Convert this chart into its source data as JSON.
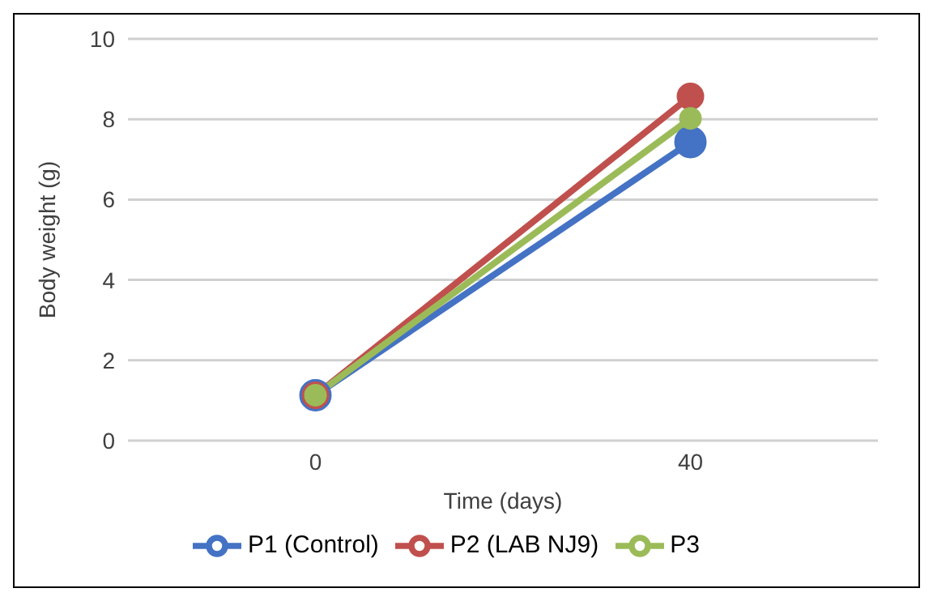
{
  "chart_data": {
    "type": "line",
    "xlabel": "Time (days)",
    "ylabel": "Body weight (g)",
    "categories": [
      "0",
      "40"
    ],
    "series": [
      {
        "name": "P1 (Control)",
        "color": "#4472c4",
        "values": [
          1.13,
          7.43
        ]
      },
      {
        "name": "P2 (LAB NJ9)",
        "color": "#c0504d",
        "values": [
          1.13,
          8.57
        ]
      },
      {
        "name": "P3",
        "color": "#9bbb59",
        "values": [
          1.13,
          8.02
        ]
      }
    ],
    "ylim": [
      0,
      10
    ],
    "yticks": [
      0,
      2,
      4,
      6,
      8,
      10
    ],
    "grid": "y",
    "legend": "bottom",
    "marker": "circle",
    "line_style": "solid"
  }
}
